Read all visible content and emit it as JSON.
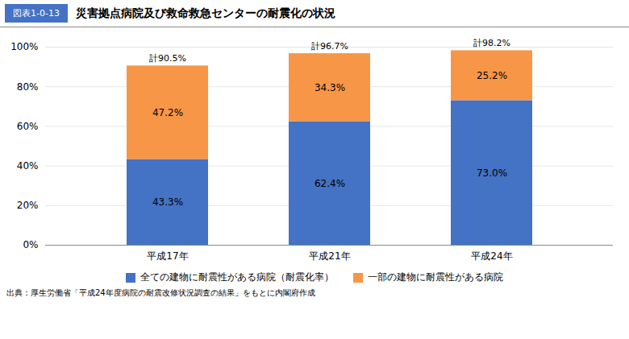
{
  "chart_data": {
    "type": "bar",
    "title": "災害拠点病院及び救命救急センターの耐震化の状況",
    "figure_label": "図表1-0-13",
    "source": "出典：厚生労働省「平成24年度病院の耐震改修状況調査の結果」をもとに内閣府作成",
    "categories": [
      "平成17年",
      "平成21年",
      "平成24年"
    ],
    "series": [
      {
        "name": "全ての建物に耐震性がある病院（耐震化率）",
        "color": "#4472C4",
        "values": [
          43.3,
          62.4,
          73.0
        ],
        "value_labels": [
          "43.3%",
          "62.4%",
          "73.0%"
        ]
      },
      {
        "name": "一部の建物に耐震性がある病院",
        "color": "#F79646",
        "values": [
          47.2,
          34.3,
          25.2
        ],
        "value_labels": [
          "47.2%",
          "34.3%",
          "25.2%"
        ]
      }
    ],
    "totals": [
      90.5,
      96.7,
      98.2
    ],
    "total_labels": [
      "計90.5%",
      "計96.7%",
      "計98.2%"
    ],
    "stacked": true,
    "data_labels": true,
    "ylim": [
      0,
      100
    ],
    "yticks": [
      {
        "value": 0,
        "label": "0%"
      },
      {
        "value": 20,
        "label": "20%"
      },
      {
        "value": 40,
        "label": "40%"
      },
      {
        "value": 60,
        "label": "60%"
      },
      {
        "value": 80,
        "label": "80%"
      },
      {
        "value": 100,
        "label": "100%"
      }
    ],
    "grid": true,
    "legend": "bottom"
  }
}
